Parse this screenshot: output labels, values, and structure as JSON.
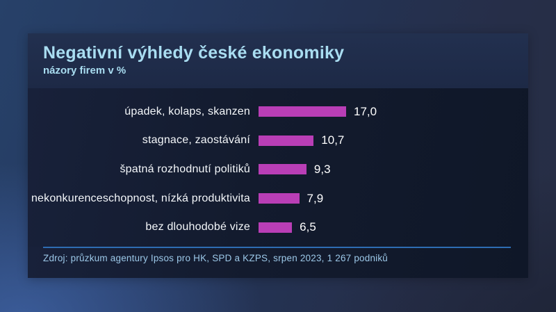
{
  "panel": {
    "title": "Negativní výhledy české ekonomiky",
    "subtitle": "názory firem v %",
    "source": "Zdroj: průzkum agentury Ipsos pro HK, SPD a KZPS, srpen 2023, 1 267 podniků"
  },
  "colors": {
    "bar": "#b93eb6",
    "title_text": "#a9ddf1",
    "label_text": "#f4f7fa",
    "value_text": "#ffffff",
    "source_text": "#9cc8e8",
    "separator": "#2e6db3",
    "panel_header_bg": "#1f2c4b",
    "panel_body_bg": "#131b2e",
    "background_blue": "#25395f"
  },
  "chart_data": {
    "type": "bar",
    "orientation": "horizontal",
    "title": "Negativní výhledy české ekonomiky",
    "subtitle": "názory firem v %",
    "unit": "%",
    "categories": [
      "úpadek, kolaps, skanzen",
      "stagnace, zaostávání",
      "špatná rozhodnutí politiků",
      "nekonkurenceschopnost, nízká produktivita",
      "bez dlouhodobé vize"
    ],
    "values": [
      17.0,
      10.7,
      9.3,
      7.9,
      6.5
    ],
    "value_labels": [
      "17,0",
      "10,7",
      "9,3",
      "7,9",
      "6,5"
    ],
    "xlim": [
      0,
      17
    ],
    "grid": false,
    "legend": false,
    "source": "Zdroj: průzkum agentury Ipsos pro HK, SPD a KZPS, srpen 2023, 1 267 podniků"
  }
}
